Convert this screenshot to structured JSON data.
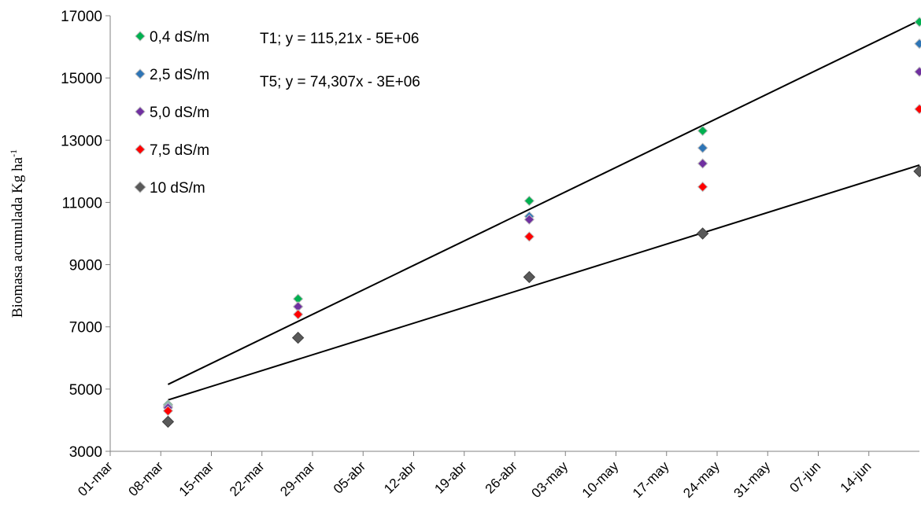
{
  "chart_data": {
    "type": "scatter",
    "ylabel": "Biomasa acumulada Kg ha",
    "ylabel_sup": "-1",
    "xlabel": "",
    "ylim": [
      3000,
      17000
    ],
    "yticks": [
      3000,
      5000,
      7000,
      9000,
      11000,
      13000,
      15000,
      17000
    ],
    "xlim": [
      "2016-03-01",
      "2016-06-21"
    ],
    "xticks": [
      "01-mar",
      "08-mar",
      "15-mar",
      "22-mar",
      "29-mar",
      "05-abr",
      "12-abr",
      "19-abr",
      "26-abr",
      "03-may",
      "10-may",
      "17-may",
      "24-may",
      "31-may",
      "07-jun",
      "14-jun"
    ],
    "legend_position": "top-left",
    "grid": false,
    "x_dates": [
      "2016-03-09",
      "2016-03-27",
      "2016-04-28",
      "2016-05-22",
      "2016-06-21"
    ],
    "series": [
      {
        "name": "0,4 dS/m",
        "color": "#00b050",
        "values": [
          4500,
          7900,
          11050,
          13300,
          16800
        ]
      },
      {
        "name": "2,5 dS/m",
        "color": "#2e75b6",
        "values": [
          4450,
          7650,
          10550,
          12750,
          16100
        ]
      },
      {
        "name": "5,0 dS/m",
        "color": "#7030a0",
        "values": [
          4400,
          7650,
          10450,
          12250,
          15200
        ]
      },
      {
        "name": "7,5 dS/m",
        "color": "#ff0000",
        "values": [
          4300,
          7400,
          9900,
          11500,
          14000
        ]
      },
      {
        "name": "10 dS/m",
        "color": "#595959",
        "values": [
          3950,
          6650,
          8600,
          10000,
          12000
        ]
      }
    ],
    "trendlines": [
      {
        "label": "T1; y = 115,21x - 5E+06",
        "start": [
          "2016-03-09",
          5150
        ],
        "end": [
          "2016-06-21",
          16850
        ]
      },
      {
        "label": "T5; y = 74,307x - 3E+06",
        "start": [
          "2016-03-09",
          4650
        ],
        "end": [
          "2016-06-21",
          12200
        ]
      }
    ]
  }
}
